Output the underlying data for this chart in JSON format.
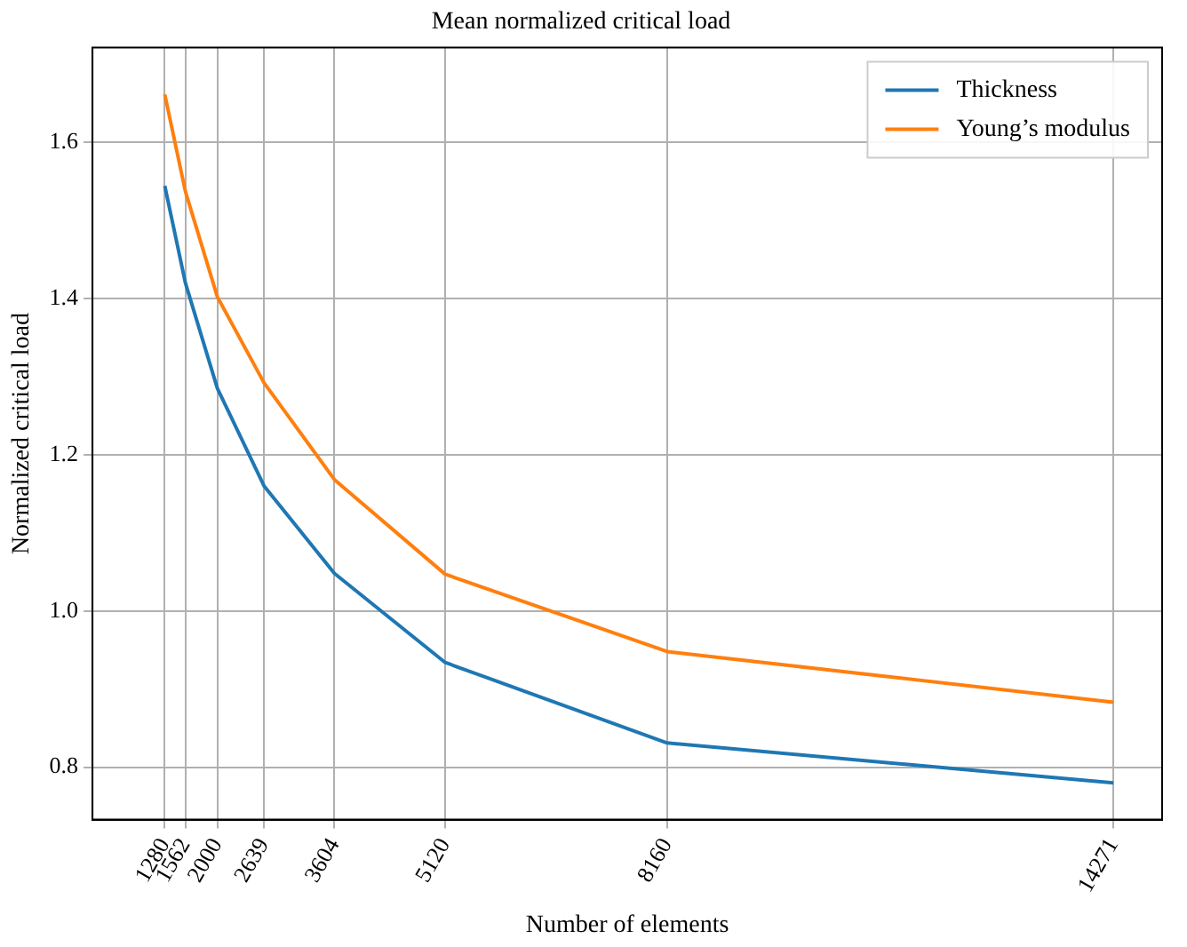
{
  "chart_data": {
    "type": "line",
    "title": "Mean normalized critical load",
    "xlabel": "Number of elements",
    "ylabel": "Normalized critical load",
    "x": [
      1280,
      1562,
      2000,
      2639,
      3604,
      5120,
      8160,
      14271
    ],
    "series": [
      {
        "name": "Thickness",
        "color": "#1f77b4",
        "values": [
          1.544,
          1.42,
          1.285,
          1.16,
          1.048,
          0.934,
          0.831,
          0.78
        ]
      },
      {
        "name": "Young’s modulus",
        "color": "#ff7f0e",
        "values": [
          1.661,
          1.537,
          1.402,
          1.292,
          1.168,
          1.047,
          0.948,
          0.883
        ]
      }
    ],
    "xlim": [
      290,
      14939
    ],
    "xticks": [
      1280,
      1562,
      2000,
      2639,
      3604,
      5120,
      8160,
      14271
    ],
    "ylim": [
      0.733,
      1.721
    ],
    "yticks": [
      {
        "value": 0.8,
        "label": "0.8"
      },
      {
        "value": 1.0,
        "label": "1.0"
      },
      {
        "value": 1.2,
        "label": "1.2"
      },
      {
        "value": 1.4,
        "label": "1.4"
      },
      {
        "value": 1.6,
        "label": "1.6"
      }
    ],
    "grid": true,
    "legend": "top right",
    "marker": "none",
    "line_style": "solid"
  }
}
